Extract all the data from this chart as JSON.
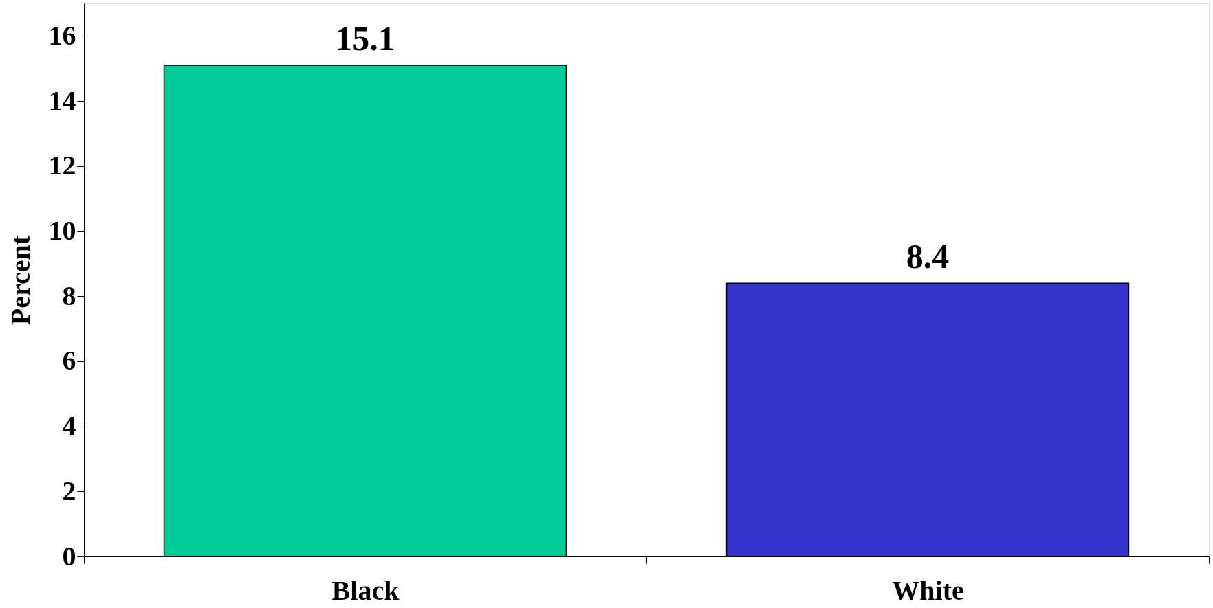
{
  "chart_data": {
    "type": "bar",
    "ylabel": "Percent",
    "categories": [
      "Black",
      "White"
    ],
    "values": [
      15.1,
      8.4
    ],
    "colors": [
      "#00cc99",
      "#3333cc"
    ],
    "ylim": [
      0,
      17
    ],
    "yticks": [
      0,
      2,
      4,
      6,
      8,
      10,
      12,
      14,
      16
    ],
    "grid": false,
    "data_labels": true
  }
}
